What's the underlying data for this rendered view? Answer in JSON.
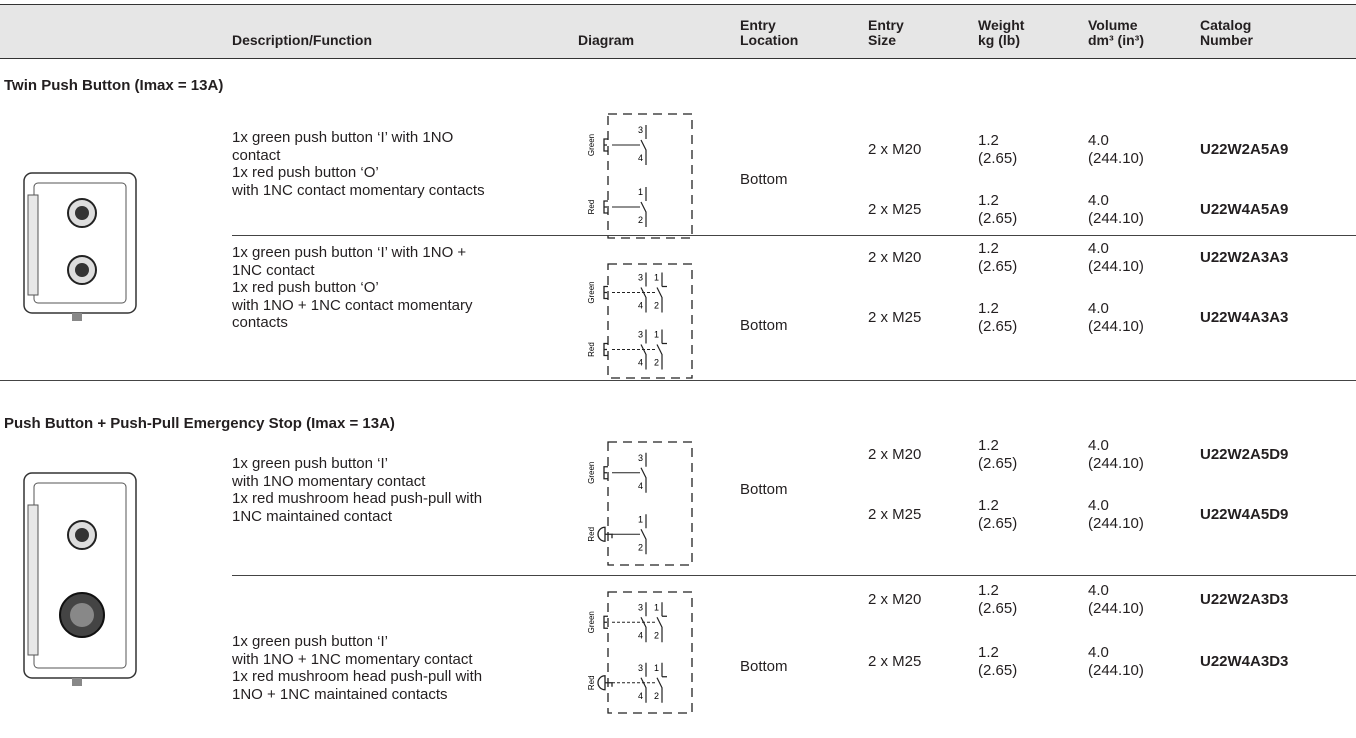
{
  "header": {
    "columns": [
      [
        "Description/Function"
      ],
      [
        "Diagram"
      ],
      [
        "Entry",
        "Location"
      ],
      [
        "Entry",
        "Size"
      ],
      [
        "Weight",
        "kg (lb)"
      ],
      [
        "Volume",
        "dm³ (in³)"
      ],
      [
        "Catalog",
        "Number"
      ]
    ]
  },
  "sections": [
    {
      "title": "Twin Push Button (Imax = 13A)",
      "groups": [
        {
          "description": [
            "1x green push button ‘I’ with 1NO",
            "contact",
            "1x red push button ‘O’",
            "with 1NC contact momentary contacts"
          ],
          "diagram": {
            "buttons": [
              {
                "label": "Green",
                "contacts": [
                  [
                    "3",
                    "4"
                  ]
                ]
              },
              {
                "label": "Red",
                "contacts": [
                  [
                    "1",
                    "2"
                  ]
                ]
              }
            ]
          },
          "location": "Bottom",
          "rows": [
            {
              "size": "2 x M20",
              "weight": "1.2",
              "weight_lb": "(2.65)",
              "volume": "4.0",
              "volume_in": "(244.10)",
              "catalog": "U22W2A5A9"
            },
            {
              "size": "2 x M25",
              "weight": "1.2",
              "weight_lb": "(2.65)",
              "volume": "4.0",
              "volume_in": "(244.10)",
              "catalog": "U22W4A5A9"
            }
          ]
        },
        {
          "description": [
            "1x green push button ‘I’ with 1NO +",
            "1NC contact",
            "1x red push button ‘O’",
            "with 1NO + 1NC contact momentary",
            "contacts"
          ],
          "diagram": {
            "buttons": [
              {
                "label": "Green",
                "contacts": [
                  [
                    "3",
                    "4"
                  ],
                  [
                    "1",
                    "2"
                  ]
                ]
              },
              {
                "label": "Red",
                "contacts": [
                  [
                    "3",
                    "4"
                  ],
                  [
                    "1",
                    "2"
                  ]
                ]
              }
            ]
          },
          "location": "Bottom",
          "rows": [
            {
              "size": "2 x M20",
              "weight": "1.2",
              "weight_lb": "(2.65)",
              "volume": "4.0",
              "volume_in": "(244.10)",
              "catalog": "U22W2A3A3"
            },
            {
              "size": "2 x M25",
              "weight": "1.2",
              "weight_lb": "(2.65)",
              "volume": "4.0",
              "volume_in": "(244.10)",
              "catalog": "U22W4A3A3"
            }
          ]
        }
      ]
    },
    {
      "title": "Push Button + Push-Pull Emergency Stop (Imax = 13A)",
      "groups": [
        {
          "description": [
            "1x green push button ‘I’",
            "with 1NO momentary contact",
            "1x red mushroom head push-pull with",
            "1NC maintained contact"
          ],
          "diagram": {
            "buttons": [
              {
                "label": "Green",
                "contacts": [
                  [
                    "3",
                    "4"
                  ]
                ]
              },
              {
                "label": "Red",
                "contacts": [
                  [
                    "1",
                    "2"
                  ]
                ]
              }
            ]
          },
          "location": "Bottom",
          "rows": [
            {
              "size": "2 x M20",
              "weight": "1.2",
              "weight_lb": "(2.65)",
              "volume": "4.0",
              "volume_in": "(244.10)",
              "catalog": "U22W2A5D9"
            },
            {
              "size": "2 x M25",
              "weight": "1.2",
              "weight_lb": "(2.65)",
              "volume": "4.0",
              "volume_in": "(244.10)",
              "catalog": "U22W4A5D9"
            }
          ]
        },
        {
          "description": [
            "1x green push button ‘I’",
            "with 1NO + 1NC momentary contact",
            "1x red mushroom head push-pull with",
            "1NO + 1NC maintained contacts"
          ],
          "diagram": {
            "buttons": [
              {
                "label": "Green",
                "contacts": [
                  [
                    "3",
                    "4"
                  ],
                  [
                    "1",
                    "2"
                  ]
                ]
              },
              {
                "label": "Red",
                "contacts": [
                  [
                    "3",
                    "4"
                  ],
                  [
                    "1",
                    "2"
                  ]
                ]
              }
            ]
          },
          "location": "Bottom",
          "rows": [
            {
              "size": "2 x M20",
              "weight": "1.2",
              "weight_lb": "(2.65)",
              "volume": "4.0",
              "volume_in": "(244.10)",
              "catalog": "U22W2A3D3"
            },
            {
              "size": "2 x M25",
              "weight": "1.2",
              "weight_lb": "(2.65)",
              "volume": "4.0",
              "volume_in": "(244.10)",
              "catalog": "U22W4A3D3"
            }
          ]
        }
      ]
    }
  ]
}
